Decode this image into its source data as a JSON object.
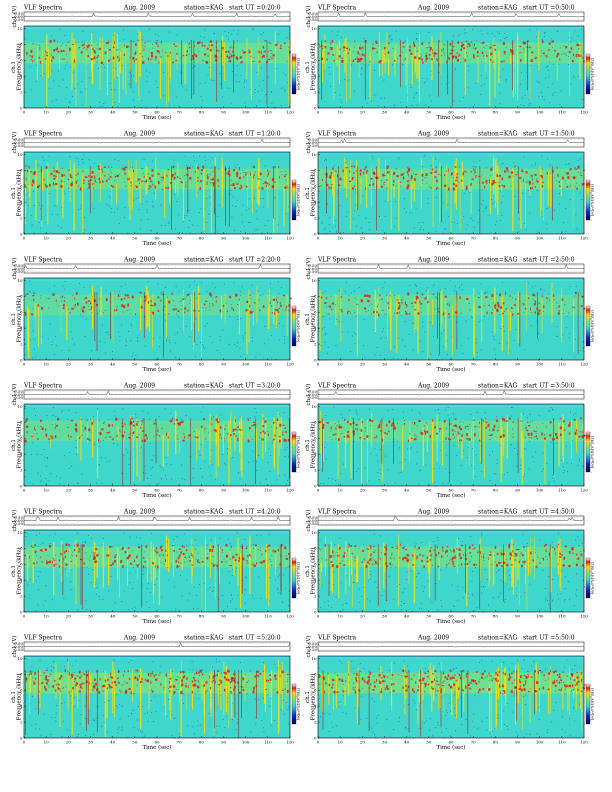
{
  "header": {
    "title": "VLF Spectra",
    "date": "Aug. 2009",
    "station": "station=KAG",
    "start_prefix": "start  UT ="
  },
  "axes": {
    "waveform_label": "ch.1 (V)",
    "waveform_ticks": [
      "0.50",
      "0.00",
      "-0.50"
    ],
    "channel_label": "ch.1",
    "ylabel": "Frequency (kHz)",
    "yticks": [
      "0",
      "2",
      "4",
      "6",
      "8",
      "10"
    ],
    "xlabel": "Time (sec)",
    "xticks": [
      "0",
      "10",
      "20",
      "30",
      "40",
      "50",
      "60",
      "70",
      "80",
      "90",
      "100",
      "110",
      "120"
    ],
    "colorbar_label": "log₁₀PSD(V²/Hz)",
    "colorbar_tick": "-"
  },
  "colors": {
    "spectrum_low": "#0a2bc8",
    "spectrum_mid": "#3fd6cc",
    "spectrum_green": "#7de27a",
    "spectrum_high": "#ffe000",
    "spectrum_peak": "#e0201a"
  },
  "chart_data": [
    {
      "type": "heatmap",
      "start_ut": "0:20:0",
      "xlabel": "Time (sec)",
      "ylabel": "Frequency (kHz)",
      "xlim": [
        0,
        120
      ],
      "ylim": [
        0,
        10
      ],
      "activity": 0.5
    },
    {
      "type": "heatmap",
      "start_ut": "0:50:0",
      "xlabel": "Time (sec)",
      "ylabel": "Frequency (kHz)",
      "xlim": [
        0,
        120
      ],
      "ylim": [
        0,
        10
      ],
      "activity": 0.5
    },
    {
      "type": "heatmap",
      "start_ut": "1:20:0",
      "xlabel": "Time (sec)",
      "ylabel": "Frequency (kHz)",
      "xlim": [
        0,
        120
      ],
      "ylim": [
        0,
        10
      ],
      "activity": 0.6
    },
    {
      "type": "heatmap",
      "start_ut": "1:50:0",
      "xlabel": "Time (sec)",
      "ylabel": "Frequency (kHz)",
      "xlim": [
        0,
        120
      ],
      "ylim": [
        0,
        10
      ],
      "activity": 0.55
    },
    {
      "type": "heatmap",
      "start_ut": "2:20:0",
      "xlabel": "Time (sec)",
      "ylabel": "Frequency (kHz)",
      "xlim": [
        0,
        120
      ],
      "ylim": [
        0,
        10
      ],
      "activity": 0.3
    },
    {
      "type": "heatmap",
      "start_ut": "2:50:0",
      "xlabel": "Time (sec)",
      "ylabel": "Frequency (kHz)",
      "xlim": [
        0,
        120
      ],
      "ylim": [
        0,
        10
      ],
      "activity": 0.3
    },
    {
      "type": "heatmap",
      "start_ut": "3:20:0",
      "xlabel": "Time (sec)",
      "ylabel": "Frequency (kHz)",
      "xlim": [
        0,
        120
      ],
      "ylim": [
        0,
        10
      ],
      "activity": 0.4
    },
    {
      "type": "heatmap",
      "start_ut": "3:50:0",
      "xlabel": "Time (sec)",
      "ylabel": "Frequency (kHz)",
      "xlim": [
        0,
        120
      ],
      "ylim": [
        0,
        10
      ],
      "activity": 0.45
    },
    {
      "type": "heatmap",
      "start_ut": "4:20:0",
      "xlabel": "Time (sec)",
      "ylabel": "Frequency (kHz)",
      "xlim": [
        0,
        120
      ],
      "ylim": [
        0,
        10
      ],
      "activity": 0.5
    },
    {
      "type": "heatmap",
      "start_ut": "4:50:0",
      "xlabel": "Time (sec)",
      "ylabel": "Frequency (kHz)",
      "xlim": [
        0,
        120
      ],
      "ylim": [
        0,
        10
      ],
      "activity": 0.55
    },
    {
      "type": "heatmap",
      "start_ut": "5:20:0",
      "xlabel": "Time (sec)",
      "ylabel": "Frequency (kHz)",
      "xlim": [
        0,
        120
      ],
      "ylim": [
        0,
        10
      ],
      "activity": 0.75
    },
    {
      "type": "heatmap",
      "start_ut": "5:50:0",
      "xlabel": "Time (sec)",
      "ylabel": "Frequency (kHz)",
      "xlim": [
        0,
        120
      ],
      "ylim": [
        0,
        10
      ],
      "activity": 0.8
    }
  ]
}
